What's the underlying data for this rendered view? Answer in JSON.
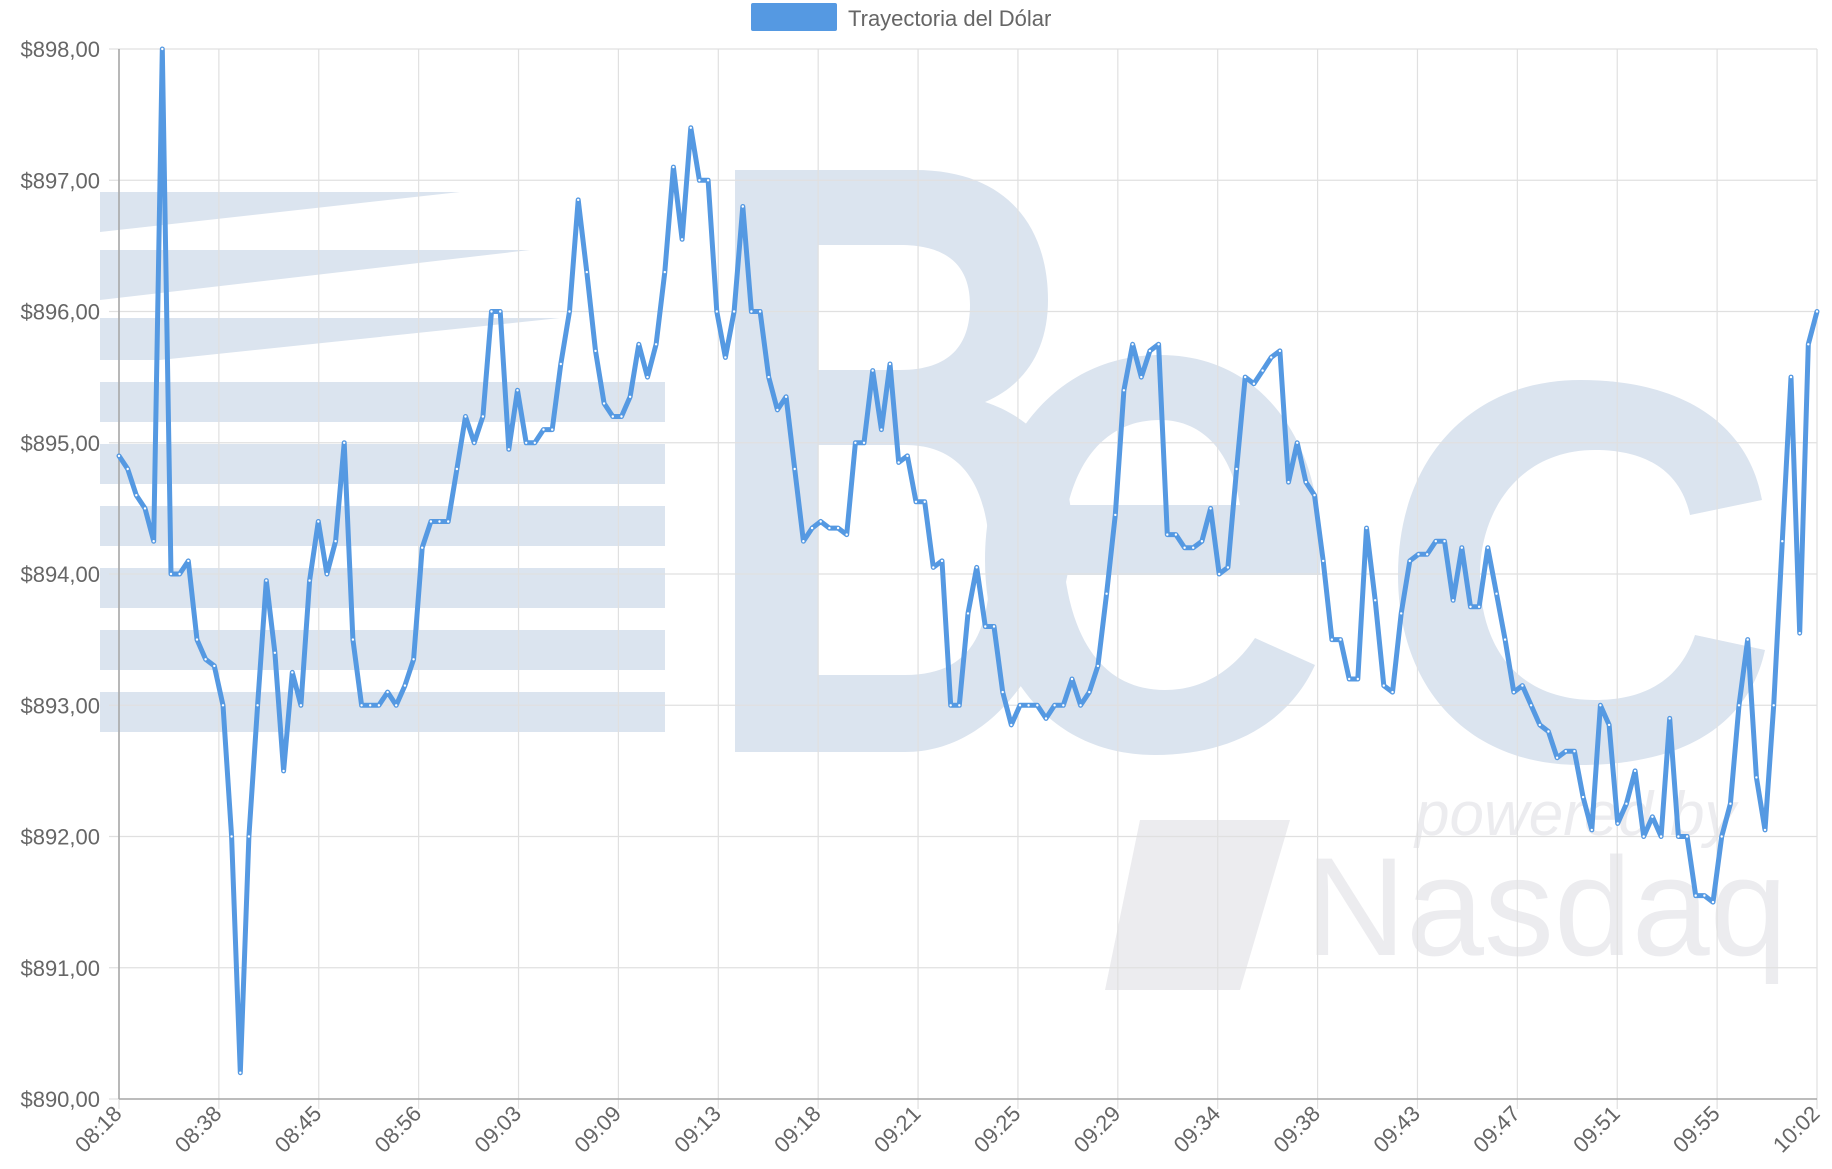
{
  "chart_data": {
    "type": "line",
    "legend": {
      "label": "Trayectoria del Dólar",
      "position": "top-center"
    },
    "xlabel": "",
    "ylabel": "",
    "ylim": [
      890,
      898
    ],
    "y_ticks": [
      "$890,00",
      "$891,00",
      "$892,00",
      "$893,00",
      "$894,00",
      "$895,00",
      "$896,00",
      "$897,00",
      "$898,00"
    ],
    "x_ticks": [
      "08:18",
      "08:38",
      "08:45",
      "08:56",
      "09:03",
      "09:09",
      "09:13",
      "09:18",
      "09:21",
      "09:25",
      "09:29",
      "09:34",
      "09:38",
      "09:43",
      "09:47",
      "09:51",
      "09:55",
      "10:02"
    ],
    "grid": true,
    "series": [
      {
        "name": "Trayectoria del Dólar",
        "color": "#5599e2",
        "values": [
          894.9,
          894.8,
          894.6,
          894.5,
          894.25,
          898.0,
          894.0,
          894.0,
          894.1,
          893.5,
          893.35,
          893.3,
          893.0,
          892.0,
          890.2,
          892.0,
          893.0,
          893.95,
          893.4,
          892.5,
          893.25,
          893.0,
          893.95,
          894.4,
          894.0,
          894.25,
          895.0,
          893.5,
          893.0,
          893.0,
          893.0,
          893.1,
          893.0,
          893.15,
          893.35,
          894.2,
          894.4,
          894.4,
          894.4,
          894.8,
          895.2,
          895.0,
          895.2,
          896.0,
          896.0,
          894.95,
          895.4,
          895.0,
          895.0,
          895.1,
          895.1,
          895.6,
          896.0,
          896.85,
          896.3,
          895.7,
          895.3,
          895.2,
          895.2,
          895.35,
          895.75,
          895.5,
          895.75,
          896.3,
          897.1,
          896.55,
          897.4,
          897.0,
          897.0,
          896.0,
          895.65,
          896.0,
          896.8,
          896.0,
          896.0,
          895.5,
          895.25,
          895.35,
          894.8,
          894.25,
          894.35,
          894.4,
          894.35,
          894.35,
          894.3,
          895.0,
          895.0,
          895.55,
          895.1,
          895.6,
          894.85,
          894.9,
          894.55,
          894.55,
          894.05,
          894.1,
          893.0,
          893.0,
          893.7,
          894.05,
          893.6,
          893.6,
          893.1,
          892.85,
          893.0,
          893.0,
          893.0,
          892.9,
          893.0,
          893.0,
          893.2,
          893.0,
          893.1,
          893.3,
          893.85,
          894.45,
          895.4,
          895.75,
          895.5,
          895.7,
          895.75,
          894.3,
          894.3,
          894.2,
          894.2,
          894.25,
          894.5,
          894.0,
          894.05,
          894.8,
          895.5,
          895.45,
          895.55,
          895.65,
          895.7,
          894.7,
          895.0,
          894.7,
          894.6,
          894.1,
          893.5,
          893.5,
          893.2,
          893.2,
          894.35,
          893.8,
          893.15,
          893.1,
          893.7,
          894.1,
          894.15,
          894.15,
          894.25,
          894.25,
          893.8,
          894.2,
          893.75,
          893.75,
          894.2,
          893.85,
          893.5,
          893.1,
          893.15,
          893.0,
          892.85,
          892.8,
          892.6,
          892.65,
          892.65,
          892.3,
          892.05,
          893.0,
          892.85,
          892.1,
          892.25,
          892.5,
          892.0,
          892.15,
          892.0,
          892.9,
          892.0,
          892.0,
          891.55,
          891.55,
          891.5,
          892.0,
          892.25,
          893.0,
          893.5,
          892.45,
          892.05,
          893.0,
          894.25,
          895.5,
          893.55,
          895.75,
          896.0
        ]
      }
    ]
  }
}
